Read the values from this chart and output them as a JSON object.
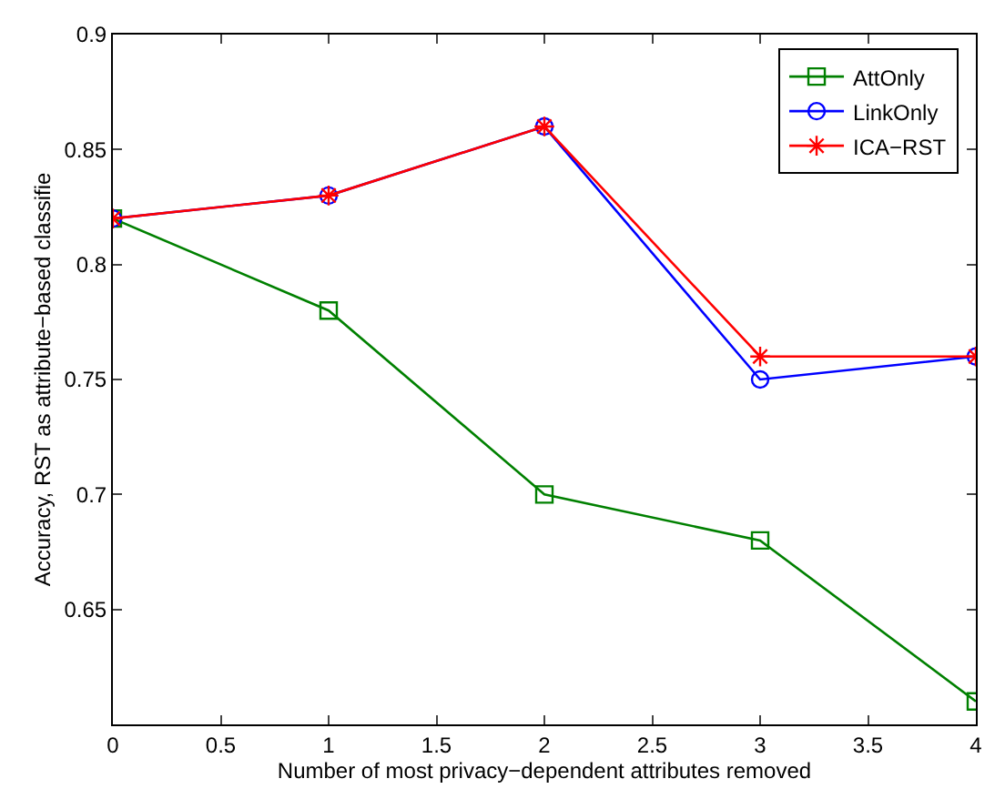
{
  "chart_data": {
    "type": "line",
    "xlabel": "Number of most privacy−dependent attributes removed",
    "ylabel": "Accuracy, RST as attribute−based classifie",
    "x": [
      0,
      1,
      2,
      3,
      4
    ],
    "series": [
      {
        "name": "AttOnly",
        "color": "#008000",
        "marker": "square",
        "values": [
          0.82,
          0.78,
          0.7,
          0.68,
          0.61
        ]
      },
      {
        "name": "LinkOnly",
        "color": "#0000ff",
        "marker": "circle",
        "values": [
          0.82,
          0.83,
          0.86,
          0.75,
          0.76
        ]
      },
      {
        "name": "ICA−RST",
        "color": "#ff0000",
        "marker": "cross",
        "values": [
          0.82,
          0.83,
          0.86,
          0.76,
          0.76
        ]
      }
    ],
    "xlim": [
      0,
      4
    ],
    "xticks": [
      0,
      0.5,
      1,
      1.5,
      2,
      2.5,
      3,
      3.5,
      4
    ],
    "ylim": [
      0.6,
      0.9
    ],
    "yticks": [
      0.65,
      0.7,
      0.75,
      0.8,
      0.85,
      0.9
    ],
    "legend": "top right",
    "line_style": "solid"
  }
}
